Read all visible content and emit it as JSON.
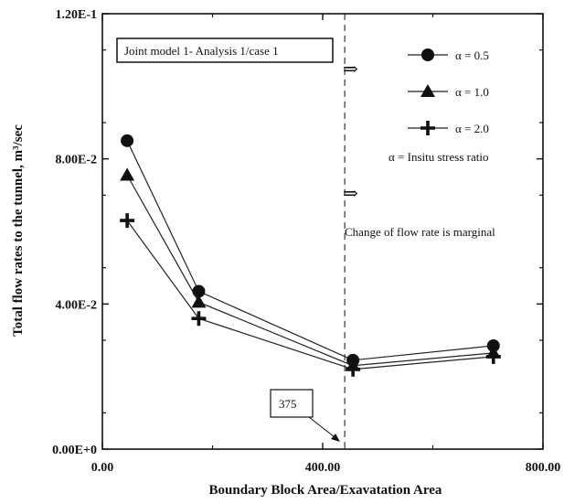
{
  "chart_data": {
    "type": "line",
    "xlabel": "Boundary Block Area/Exavatation Area",
    "ylabel": "Total flow rates to the tunnel, m³/sec",
    "xlim": [
      0,
      800
    ],
    "ylim": [
      0,
      0.12
    ],
    "x_ticks": [
      {
        "value": 0,
        "label": "0.00"
      },
      {
        "value": 400,
        "label": "400.00"
      },
      {
        "value": 800,
        "label": "800.00"
      }
    ],
    "y_ticks": [
      {
        "value": 0,
        "label": "0.00E+0"
      },
      {
        "value": 0.04,
        "label": "4.00E-2"
      },
      {
        "value": 0.08,
        "label": "8.00E-2"
      },
      {
        "value": 0.12,
        "label": "1.20E-1"
      }
    ],
    "grid": false,
    "legend_position": "top-right",
    "x": [
      45,
      175,
      455,
      710
    ],
    "series": [
      {
        "name": "α = 0.5",
        "marker": "circle",
        "values": [
          0.085,
          0.0435,
          0.0245,
          0.0285
        ]
      },
      {
        "name": "α = 1.0",
        "marker": "triangle",
        "values": [
          0.0755,
          0.0405,
          0.023,
          0.0265
        ]
      },
      {
        "name": "α = 2.0",
        "marker": "cross",
        "values": [
          0.063,
          0.036,
          0.022,
          0.0255
        ]
      }
    ],
    "annotations": {
      "box_title": "Joint model 1- Analysis 1/case 1",
      "stress_note": "α = Insitu stress ratio",
      "arrow_symbol": "⇒",
      "marginal_note": "Change of flow rate is marginal",
      "threshold_label": "375",
      "threshold_x": 440
    }
  }
}
